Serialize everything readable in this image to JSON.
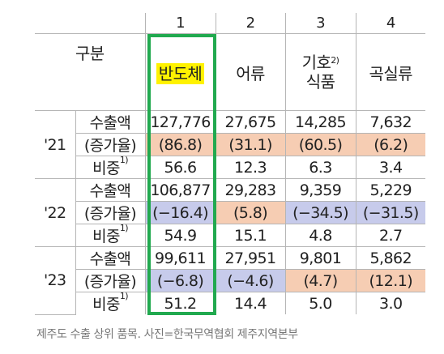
{
  "columns": [
    "1",
    "2",
    "3",
    "4"
  ],
  "header": {
    "category": "구분",
    "items": [
      {
        "line1": "반도체",
        "line2": "",
        "note": ""
      },
      {
        "line1": "어류",
        "line2": "",
        "note": ""
      },
      {
        "line1": "기호",
        "line2": "식품",
        "note": "2)"
      },
      {
        "line1": "곡실류",
        "line2": "",
        "note": ""
      }
    ]
  },
  "row_labels": {
    "export": "수출액",
    "growth": "(증가율)",
    "share": "비중",
    "share_note": "1)"
  },
  "years": [
    {
      "year": "'21",
      "export": [
        "127,776",
        "27,675",
        "14,285",
        "7,632"
      ],
      "growth": [
        "(86.8)",
        "(31.1)",
        "(60.5)",
        "(6.2)"
      ],
      "share": [
        "56.6",
        "12.3",
        "6.3",
        "3.4"
      ]
    },
    {
      "year": "'22",
      "export": [
        "106,877",
        "29,283",
        "9,359",
        "5,229"
      ],
      "growth": [
        "(−16.4)",
        "(5.8)",
        "(−34.5)",
        "(−31.5)"
      ],
      "share": [
        "54.9",
        "15.1",
        "4.8",
        "2.7"
      ]
    },
    {
      "year": "'23",
      "export": [
        "99,611",
        "27,951",
        "9,801",
        "5,862"
      ],
      "growth": [
        "(−6.8)",
        "(−4.6)",
        "(4.7)",
        "(12.1)"
      ],
      "share": [
        "51.2",
        "14.4",
        "5.0",
        "3.0"
      ]
    }
  ],
  "colors": {
    "positive": "#f6cdb3",
    "negative": "#c7cbeb",
    "highlight": "#fff200",
    "box": "#21a94f"
  },
  "caption": "제주도 수출 상위 품목. 사진=한국무역협회 제주지역본부"
}
